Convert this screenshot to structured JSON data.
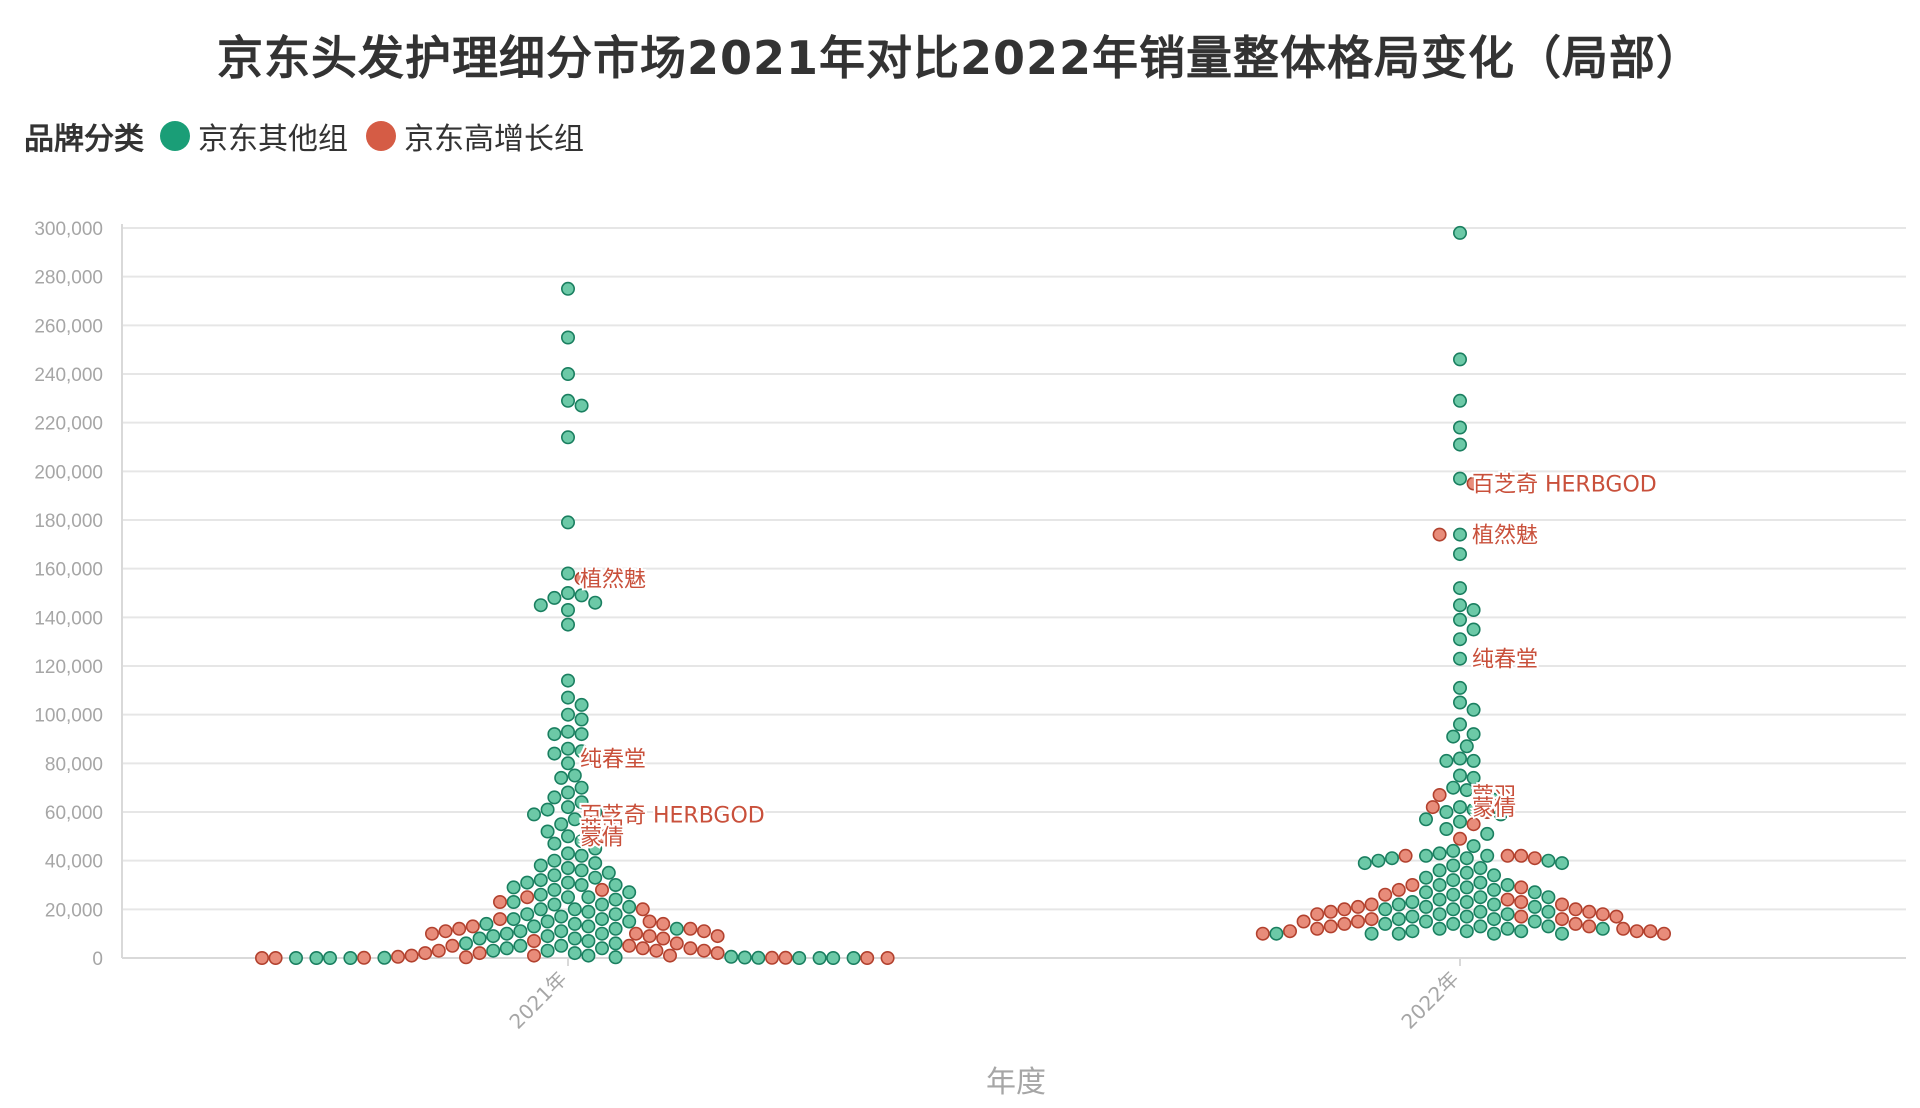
{
  "colors": {
    "other": "#1a9e77",
    "growth": "#d55c45"
  },
  "chart_data": {
    "type": "scatter",
    "subtype": "beeswarm",
    "title": "京东头发护理细分市场2021年对比2022年销量整体格局变化（局部）",
    "xlabel": "年度",
    "ylabel": "",
    "ylim": [
      0,
      300000
    ],
    "yticks": [
      "0",
      "20,000",
      "40,000",
      "60,000",
      "80,000",
      "100,000",
      "120,000",
      "140,000",
      "160,000",
      "180,000",
      "200,000",
      "220,000",
      "240,000",
      "260,000",
      "280,000",
      "300,000"
    ],
    "categories": [
      "2021年",
      "2022年"
    ],
    "grid": true,
    "legend": {
      "title": "品牌分类",
      "position": "top-left",
      "items": [
        {
          "name": "京东其他组",
          "color": "#1a9e77"
        },
        {
          "name": "京东高增长组",
          "color": "#d55c45"
        }
      ]
    },
    "series": [
      {
        "name": "京东其他组",
        "color": "#1a9e77",
        "points": {
          "2021年": [
            275000,
            255000,
            240000,
            229000,
            227000,
            214000,
            179000,
            158000,
            150000,
            149000,
            148000,
            146000,
            145000,
            143000,
            137000,
            114000,
            107000,
            104000,
            100000,
            98000,
            93000,
            92000,
            92000,
            86000,
            85000,
            84000,
            80000,
            75000,
            74000,
            70000,
            68000,
            66000,
            64000,
            62000,
            61000,
            60000,
            59000,
            57000,
            55000,
            52000,
            50000,
            48000,
            47000,
            45000,
            43000,
            42000,
            40000,
            39000,
            38000,
            37000,
            36000,
            35000,
            34000,
            33000,
            32000,
            31000,
            31000,
            30000,
            30000,
            29000,
            28000,
            27000,
            26000,
            25000,
            25000,
            24000,
            23000,
            22000,
            22000,
            21000,
            20000,
            20000,
            19000,
            18000,
            18000,
            17000,
            16000,
            16000,
            15000,
            15000,
            14000,
            14000,
            13000,
            13000,
            12000,
            12000,
            11000,
            11000,
            10000,
            10000,
            9000,
            9000,
            8000,
            8000,
            7000,
            6000,
            6000,
            5000,
            5000,
            4000,
            4000,
            3000,
            3000,
            2000,
            1000,
            500,
            300,
            200,
            100,
            100,
            0,
            0,
            0,
            0,
            0,
            0,
            0,
            0
          ],
          "2022年": [
            298000,
            246000,
            229000,
            218000,
            211000,
            197000,
            174000,
            174000,
            166000,
            152000,
            145000,
            143000,
            139000,
            135000,
            131000,
            123000,
            111000,
            105000,
            102000,
            96000,
            92000,
            91000,
            87000,
            82000,
            81000,
            81000,
            75000,
            74000,
            70000,
            69000,
            67000,
            65000,
            62000,
            61000,
            60000,
            59000,
            57000,
            56000,
            53000,
            51000,
            46000,
            44000,
            43000,
            42000,
            42000,
            41000,
            41000,
            40000,
            40000,
            39000,
            39000,
            38000,
            37000,
            36000,
            35000,
            34000,
            33000,
            32000,
            31000,
            30000,
            30000,
            29000,
            28000,
            27000,
            27000,
            26000,
            25000,
            25000,
            24000,
            23000,
            23000,
            22000,
            22000,
            21000,
            21000,
            20000,
            20000,
            19000,
            19000,
            18000,
            18000,
            17000,
            17000,
            16000,
            16000,
            15000,
            15000,
            14000,
            14000,
            13000,
            13000,
            12000,
            12000,
            12000,
            11000,
            11000,
            11000,
            10000,
            10000,
            10000,
            10000,
            10000
          ]
        }
      },
      {
        "name": "京东高增长组",
        "color": "#d55c45",
        "points": {
          "2021年": [
            156000,
            82000,
            59000,
            53000,
            50000,
            28000,
            25000,
            23000,
            20000,
            16000,
            15000,
            14000,
            13000,
            12000,
            12000,
            11000,
            11000,
            10000,
            10000,
            9000,
            9000,
            8000,
            7000,
            6000,
            5000,
            5000,
            4000,
            4000,
            3000,
            3000,
            3000,
            2000,
            2000,
            2000,
            1000,
            1000,
            1000,
            500,
            300,
            100,
            100,
            100,
            0,
            0,
            0,
            0
          ],
          "2022年": [
            195000,
            174000,
            123000,
            67000,
            62000,
            60000,
            55000,
            49000,
            42000,
            42000,
            42000,
            41000,
            30000,
            29000,
            28000,
            26000,
            24000,
            23000,
            22000,
            22000,
            21000,
            20000,
            20000,
            19000,
            19000,
            18000,
            18000,
            17000,
            17000,
            16000,
            16000,
            15000,
            15000,
            14000,
            14000,
            13000,
            13000,
            12000,
            12000,
            11000,
            11000,
            11000,
            10000,
            10000
          ]
        }
      }
    ],
    "annotations": [
      {
        "category": "2021年",
        "value": 156000,
        "text": "植然魅"
      },
      {
        "category": "2021年",
        "value": 82000,
        "text": "纯春堂"
      },
      {
        "category": "2021年",
        "value": 59000,
        "text": "百芝奇 HERBGOD"
      },
      {
        "category": "2021年",
        "value": 53000,
        "text": "蔻羽"
      },
      {
        "category": "2021年",
        "value": 50000,
        "text": "蒙倩"
      },
      {
        "category": "2022年",
        "value": 195000,
        "text": "百芝奇 HERBGOD"
      },
      {
        "category": "2022年",
        "value": 174000,
        "text": "植然魅"
      },
      {
        "category": "2022年",
        "value": 123000,
        "text": "纯春堂"
      },
      {
        "category": "2022年",
        "value": 67000,
        "text": "蔻羽"
      },
      {
        "category": "2022年",
        "value": 62000,
        "text": "蒙倩"
      }
    ]
  }
}
